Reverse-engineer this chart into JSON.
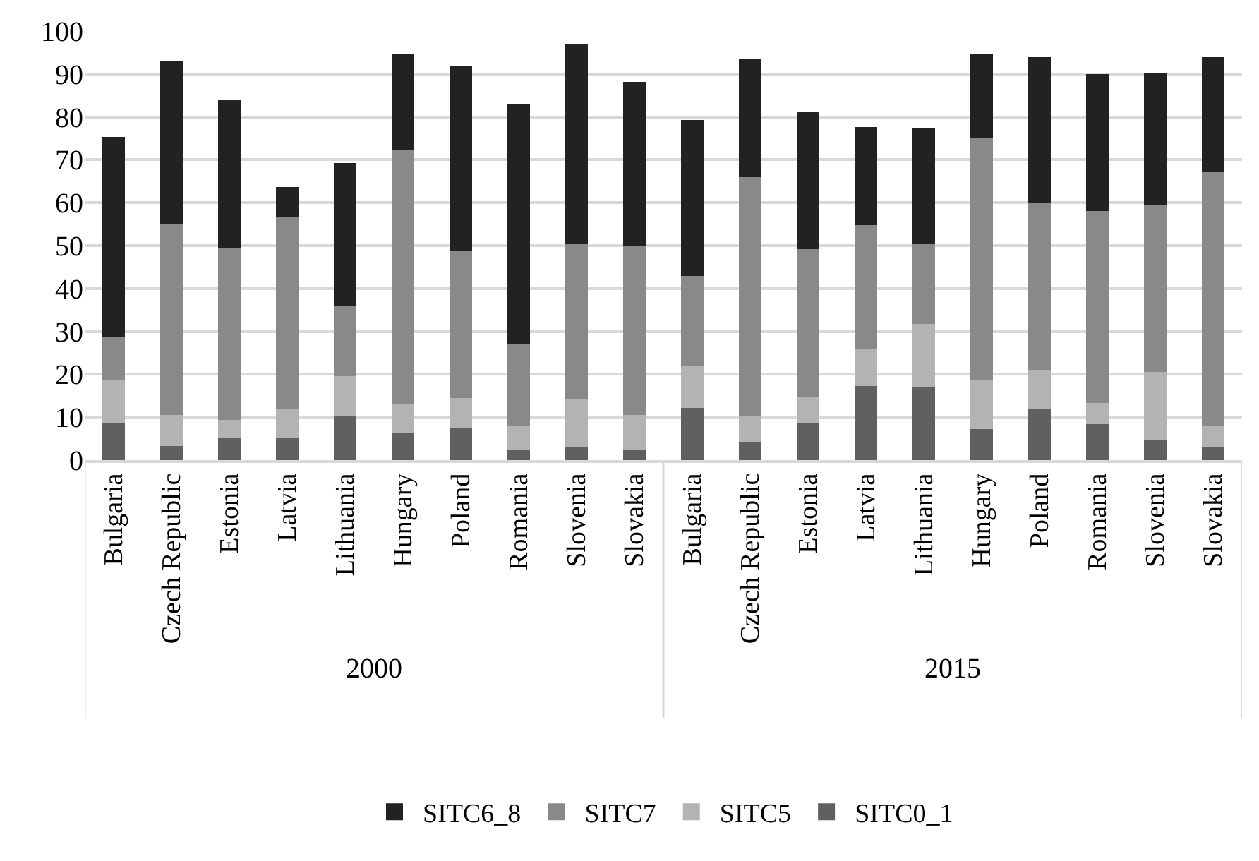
{
  "chart_data": {
    "type": "bar",
    "stacked": true,
    "categories": [
      "Bulgaria",
      "Czech Republic",
      "Estonia",
      "Latvia",
      "Lithuania",
      "Hungary",
      "Poland",
      "Romania",
      "Slovenia",
      "Slovakia",
      "Bulgaria",
      "Czech Republic",
      "Estonia",
      "Latvia",
      "Lithuania",
      "Hungary",
      "Poland",
      "Romania",
      "Slovenia",
      "Slovakia"
    ],
    "series": [
      {
        "name": "SITC0_1",
        "color": "#606060",
        "values": [
          8.8,
          3.3,
          5.3,
          5.3,
          10.2,
          6.4,
          7.6,
          2.3,
          3.0,
          2.4,
          12.2,
          4.2,
          8.8,
          17.2,
          17.0,
          7.2,
          11.9,
          8.4,
          4.6,
          3.0
        ]
      },
      {
        "name": "SITC5",
        "color": "#b3b3b3",
        "values": [
          10.0,
          7.2,
          4.0,
          6.5,
          9.3,
          6.8,
          6.9,
          5.8,
          11.2,
          8.1,
          9.9,
          6.0,
          5.8,
          8.6,
          14.7,
          11.5,
          9.1,
          5.0,
          15.9,
          4.9
        ]
      },
      {
        "name": "SITC7",
        "color": "#898989",
        "values": [
          9.9,
          44.6,
          40.0,
          44.7,
          16.5,
          59.2,
          34.2,
          19.0,
          36.2,
          39.3,
          20.9,
          55.7,
          34.6,
          29.0,
          18.7,
          56.3,
          38.8,
          44.6,
          38.9,
          59.2
        ]
      },
      {
        "name": "SITC6_8",
        "color": "#222222",
        "values": [
          46.7,
          38.0,
          34.7,
          7.2,
          33.2,
          22.3,
          43.0,
          55.8,
          46.4,
          38.4,
          36.3,
          27.6,
          31.9,
          22.8,
          27.0,
          19.7,
          34.1,
          31.9,
          30.9,
          26.8
        ]
      }
    ],
    "annotations": [
      "2000",
      "2015"
    ],
    "ylim": [
      0,
      100
    ],
    "yticks": [
      0,
      10,
      20,
      30,
      40,
      50,
      60,
      70,
      80,
      90,
      100
    ],
    "grid": "y",
    "legend": "bottom"
  }
}
